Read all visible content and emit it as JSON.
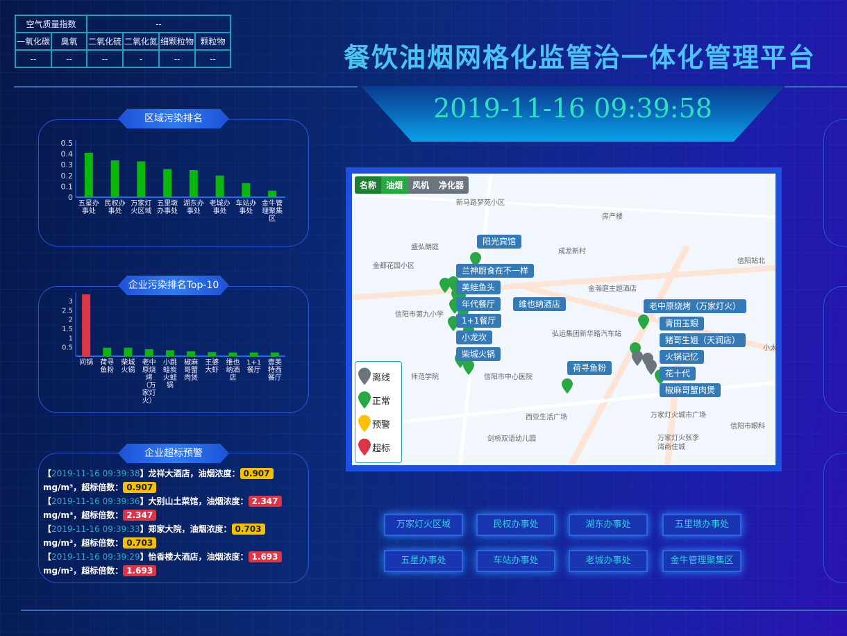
{
  "header": {
    "title": "餐饮油烟网格化监管治一体化管理平台",
    "datetime": "2019-11-16 09:39:58"
  },
  "aqi": {
    "label": "空气质量指数",
    "value": "--",
    "columns": [
      "一氧化碳",
      "臭氧",
      "二氧化硫",
      "二氧化氮",
      "细颗粒物",
      "颗粒物"
    ],
    "values": [
      "--",
      "--",
      "--",
      "-",
      "--",
      "--"
    ]
  },
  "panels": {
    "region": "区域污染排名",
    "enterprise": "企业污染排名Top-10",
    "alerts": "企业超标预警"
  },
  "chart_data": [
    {
      "type": "bar",
      "title": "",
      "categories": [
        "五星办事处",
        "民权办事处",
        "万家灯火区域",
        "五里墩办事处",
        "湖东办事处",
        "老城办事处",
        "车站办事处",
        "金牛管理聚集区"
      ],
      "values": [
        0.41,
        0.34,
        0.33,
        0.26,
        0.25,
        0.2,
        0.13,
        0.06
      ],
      "ylim": [
        0,
        0.5
      ],
      "yticks": [
        0,
        0.1,
        0.2,
        0.3,
        0.4,
        0.5
      ],
      "colors": {
        "bar": "#0bb70b"
      }
    },
    {
      "type": "bar",
      "title": "",
      "categories": [
        "问锅",
        "荷寻鱼粉",
        "柴城火锅",
        "老中原烧烤（万家灯火）",
        "小跳蛙炭火蛙锅",
        "椒麻哥蟹肉煲",
        "王婆大虾",
        "维也纳酒店",
        "1+1餐厅",
        "壹美特西餐厅"
      ],
      "values": [
        3.34,
        0.46,
        0.46,
        0.38,
        0.32,
        0.26,
        0.22,
        0.2,
        0.2,
        0.2
      ],
      "ylim": [
        0,
        3.3
      ],
      "yticks": [
        0.5,
        1,
        1.5,
        2,
        2.5,
        3
      ],
      "colors": {
        "over": "#dc3545",
        "normal": "#0bb70b"
      }
    }
  ],
  "alerts": [
    {
      "time": "2019-11-16 09:39:38",
      "name": "龙祥大酒店",
      "conc_label": "油烟浓度：",
      "value": "0.907",
      "unit": "mg/m³，超标倍数：",
      "ratio": "0.907",
      "level": "warn"
    },
    {
      "time": "2019-11-16 09:39:36",
      "name": "大别山土菜馆",
      "conc_label": "油烟浓度：",
      "value": "2.347",
      "unit": "mg/m³，超标倍数：",
      "ratio": "2.347",
      "level": "over"
    },
    {
      "time": "2019-11-16 09:39:33",
      "name": "郑家大院",
      "conc_label": "油烟浓度：",
      "value": "0.703",
      "unit": "mg/m³，超标倍数：",
      "ratio": "0.703",
      "level": "warn"
    },
    {
      "time": "2019-11-16 09:39:29",
      "name": "怡香楼大酒店",
      "conc_label": "油烟浓度：",
      "value": "1.693",
      "unit": "mg/m³，超标倍数：",
      "ratio": "1.693",
      "level": "over"
    }
  ],
  "map": {
    "tabs": [
      "名称",
      "油烟",
      "风机",
      "净化器"
    ],
    "places": [
      "新马路梦苑小区",
      "房产楼",
      "盛弘朗庭",
      "成龙新村",
      "金都花园小区",
      "信阳站北",
      "金瀚庭主题酒店",
      "信阳市第九小学",
      "弘运集团新华路汽车站",
      "小太",
      "师范学院",
      "信阳市中心医院",
      "西亚生活广场",
      "万家灯火城市广场",
      "信阳市眼科",
      "剑桥双语幼儿园",
      "万家灯火张李湾商住城"
    ],
    "labels": [
      "阳光宾馆",
      "兰神厨食在不一样",
      "美蛙鱼头",
      "年代餐厅",
      "维也纳酒店",
      "1+1餐厅",
      "小龙坎",
      "柴城火锅",
      "荷寻鱼粉",
      "老中原烧烤（万家灯火）",
      "青田玉眼",
      "猪哥生姐（天润店）",
      "火锅记忆",
      "花十代",
      "椒麻哥蟹肉煲"
    ],
    "legend": [
      {
        "label": "离线",
        "color": "#6c757d"
      },
      {
        "label": "正常",
        "color": "#28a745"
      },
      {
        "label": "预警",
        "color": "#ffc107"
      },
      {
        "label": "超标",
        "color": "#dc3545"
      }
    ]
  },
  "regions": [
    "万家灯火区域",
    "民权办事处",
    "湖东办事处",
    "五里墩办事处",
    "五星办事处",
    "车站办事处",
    "老城办事处",
    "金牛管理聚集区"
  ]
}
